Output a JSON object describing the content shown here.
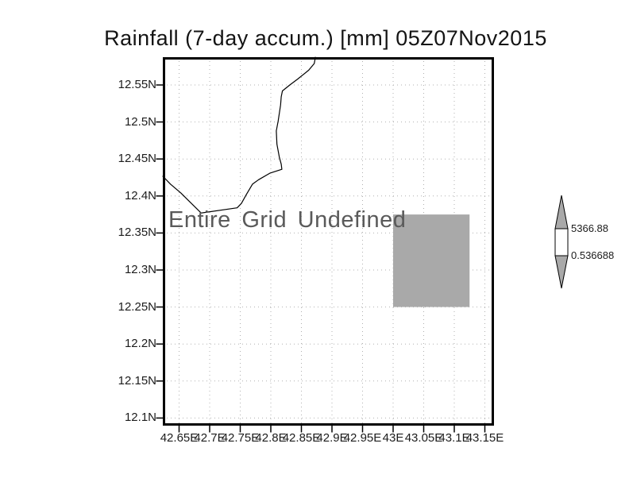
{
  "title": "Rainfall (7-day accum.) [mm] 05Z07Nov2015",
  "annotation": "Entire Grid Undefined",
  "colorbar": {
    "max_label": "5366.88",
    "min_label": "0.536688"
  },
  "colors": {
    "undef_fill": "#a9a9a9",
    "colorbar_arrow_fill": "#a9a9a9",
    "colorbar_box_fill": "#ffffff",
    "gridline": "#b0b0b0",
    "coastline": "#000000",
    "text": "#1c1c1c",
    "annotation_text": "#5a5a5a",
    "background": "#ffffff"
  },
  "chart_data": {
    "type": "heatmap",
    "title": "Rainfall (7-day accum.) [mm] 05Z07Nov2015",
    "xlabel": "",
    "ylabel": "",
    "x_ticks": [
      "42.65E",
      "42.7E",
      "42.75E",
      "42.8E",
      "42.85E",
      "42.9E",
      "42.95E",
      "43E",
      "43.05E",
      "43.1E",
      "43.15E"
    ],
    "y_ticks": [
      "12.55N",
      "12.5N",
      "12.45N",
      "12.4N",
      "12.35N",
      "12.3N",
      "12.25N",
      "12.2N",
      "12.15N",
      "12.1N"
    ],
    "x_range_deg_east": [
      42.623,
      43.165
    ],
    "y_range_deg_north": [
      12.09,
      12.588
    ],
    "grid": true,
    "data_status": "Entire Grid Undefined",
    "undefined_region": {
      "lon_min": 43.0,
      "lon_max": 43.125,
      "lat_min": 12.25,
      "lat_max": 12.375
    },
    "colorbar": {
      "min": 0.536688,
      "max": 5366.88,
      "orientation": "vertical",
      "position": "right"
    },
    "coastline_lonlat": [
      [
        42.873,
        12.588
      ],
      [
        42.871,
        12.579
      ],
      [
        42.862,
        12.57
      ],
      [
        42.844,
        12.558
      ],
      [
        42.831,
        12.55
      ],
      [
        42.819,
        12.542
      ],
      [
        42.817,
        12.534
      ],
      [
        42.816,
        12.523
      ],
      [
        42.812,
        12.501
      ],
      [
        42.809,
        12.488
      ],
      [
        42.81,
        12.47
      ],
      [
        42.814,
        12.452
      ],
      [
        42.817,
        12.443
      ],
      [
        42.818,
        12.436
      ],
      [
        42.799,
        12.431
      ],
      [
        42.78,
        12.422
      ],
      [
        42.77,
        12.416
      ],
      [
        42.76,
        12.402
      ],
      [
        42.752,
        12.39
      ],
      [
        42.745,
        12.384
      ],
      [
        42.686,
        12.377
      ],
      [
        42.653,
        12.404
      ],
      [
        42.636,
        12.416
      ],
      [
        42.623,
        12.427
      ]
    ]
  }
}
